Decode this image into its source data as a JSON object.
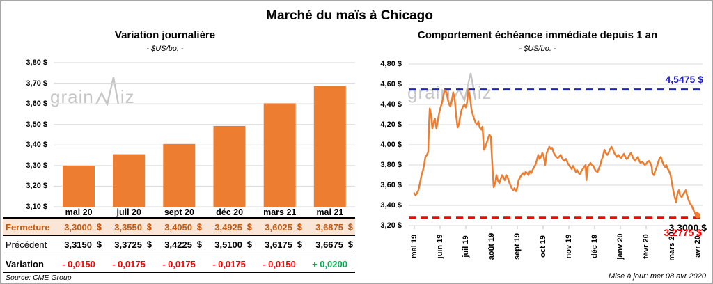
{
  "page": {
    "title": "Marché du maïs à Chicago",
    "source": "Source: CME Group",
    "updated": "Mise à jour: mer 08 avr 2020",
    "watermark": {
      "part1": "grain",
      "part2": "iz"
    }
  },
  "colors": {
    "orange": "#ED7D31",
    "blue_ref": "#2222C4",
    "red_ref": "#FF0000",
    "negative": "#FF0000",
    "positive": "#00B050",
    "fermeture_text": "#C55A11",
    "fermeture_bg": "#FBE5D6",
    "gridline": "#D9D9D9"
  },
  "chart_data": [
    {
      "type": "bar",
      "title": "Variation journalière",
      "subtitle": "- $US/bo. -",
      "categories": [
        "mai 20",
        "juil 20",
        "sept 20",
        "déc 20",
        "mars 21",
        "mai 21"
      ],
      "values": [
        3.3,
        3.355,
        3.405,
        3.4925,
        3.6025,
        3.6875
      ],
      "xlabel": "",
      "ylabel": "",
      "ylim": [
        3.1,
        3.8
      ],
      "ytick_step": 0.1,
      "ytick_labels": [
        "3,80 $",
        "3,70 $",
        "3,60 $",
        "3,50 $",
        "3,40 $",
        "3,30 $",
        "3,20 $",
        "3,10 $"
      ],
      "bar_color": "#ED7D31",
      "grid": true,
      "legend": "none"
    },
    {
      "type": "line",
      "title": "Comportement échéance immédiate depuis 1 an",
      "subtitle": "- $US/bo. -",
      "x_categories": [
        "mai 19",
        "juin 19",
        "juil 19",
        "août 19",
        "sept 19",
        "oct 19",
        "nov 19",
        "déc 19",
        "janv 20",
        "févr 20",
        "mars 20",
        "avr 20"
      ],
      "ylim": [
        3.2,
        4.8
      ],
      "ytick_step": 0.2,
      "ytick_labels": [
        "4,80 $",
        "4,60 $",
        "4,40 $",
        "4,20 $",
        "4,00 $",
        "3,80 $",
        "3,60 $",
        "3,40 $",
        "3,20 $"
      ],
      "line_color": "#ED7D31",
      "grid": true,
      "legend": "none",
      "ref_lines": [
        {
          "label": "4,5475 $",
          "value": 4.5475,
          "color": "#2222C4",
          "style": "dashed"
        },
        {
          "label": "3,2775 $",
          "value": 3.2775,
          "color": "#FF0000",
          "style": "dashed"
        }
      ],
      "last_point_label": "3,3000 $",
      "last_point_value": 3.3,
      "series": [
        {
          "name": "échéance immédiate",
          "points": [
            [
              0.0,
              3.52
            ],
            [
              0.05,
              3.5
            ],
            [
              0.1,
              3.52
            ],
            [
              0.16,
              3.55
            ],
            [
              0.22,
              3.62
            ],
            [
              0.28,
              3.7
            ],
            [
              0.33,
              3.74
            ],
            [
              0.38,
              3.8
            ],
            [
              0.43,
              3.88
            ],
            [
              0.49,
              3.9
            ],
            [
              0.54,
              3.93
            ],
            [
              0.57,
              4.2
            ],
            [
              0.6,
              4.36
            ],
            [
              0.65,
              4.3
            ],
            [
              0.7,
              4.16
            ],
            [
              0.75,
              4.22
            ],
            [
              0.8,
              4.26
            ],
            [
              0.86,
              4.16
            ],
            [
              0.92,
              4.25
            ],
            [
              0.97,
              4.32
            ],
            [
              1.03,
              4.38
            ],
            [
              1.08,
              4.42
            ],
            [
              1.14,
              4.5
            ],
            [
              1.19,
              4.54
            ],
            [
              1.25,
              4.52
            ],
            [
              1.3,
              4.45
            ],
            [
              1.35,
              4.4
            ],
            [
              1.4,
              4.38
            ],
            [
              1.46,
              4.44
            ],
            [
              1.51,
              4.52
            ],
            [
              1.57,
              4.45
            ],
            [
              1.62,
              4.3
            ],
            [
              1.68,
              4.17
            ],
            [
              1.73,
              4.2
            ],
            [
              1.78,
              4.28
            ],
            [
              1.84,
              4.35
            ],
            [
              1.89,
              4.38
            ],
            [
              1.95,
              4.4
            ],
            [
              2.0,
              4.37
            ],
            [
              2.05,
              4.42
            ],
            [
              2.1,
              4.55
            ],
            [
              2.16,
              4.48
            ],
            [
              2.22,
              4.35
            ],
            [
              2.27,
              4.3
            ],
            [
              2.32,
              4.26
            ],
            [
              2.38,
              4.22
            ],
            [
              2.43,
              4.2
            ],
            [
              2.49,
              4.23
            ],
            [
              2.54,
              4.17
            ],
            [
              2.6,
              4.15
            ],
            [
              2.65,
              4.18
            ],
            [
              2.7,
              3.95
            ],
            [
              2.76,
              3.98
            ],
            [
              2.81,
              4.02
            ],
            [
              2.86,
              4.06
            ],
            [
              2.92,
              4.1
            ],
            [
              2.97,
              4.08
            ],
            [
              3.03,
              3.8
            ],
            [
              3.08,
              3.58
            ],
            [
              3.14,
              3.62
            ],
            [
              3.19,
              3.7
            ],
            [
              3.24,
              3.65
            ],
            [
              3.3,
              3.62
            ],
            [
              3.35,
              3.66
            ],
            [
              3.41,
              3.7
            ],
            [
              3.46,
              3.68
            ],
            [
              3.51,
              3.65
            ],
            [
              3.57,
              3.7
            ],
            [
              3.62,
              3.68
            ],
            [
              3.68,
              3.63
            ],
            [
              3.73,
              3.6
            ],
            [
              3.78,
              3.57
            ],
            [
              3.84,
              3.55
            ],
            [
              3.89,
              3.57
            ],
            [
              3.95,
              3.54
            ],
            [
              4.0,
              3.58
            ],
            [
              4.05,
              3.65
            ],
            [
              4.11,
              3.68
            ],
            [
              4.16,
              3.7
            ],
            [
              4.22,
              3.72
            ],
            [
              4.27,
              3.7
            ],
            [
              4.32,
              3.73
            ],
            [
              4.38,
              3.72
            ],
            [
              4.43,
              3.7
            ],
            [
              4.49,
              3.74
            ],
            [
              4.54,
              3.72
            ],
            [
              4.59,
              3.75
            ],
            [
              4.65,
              3.78
            ],
            [
              4.7,
              3.8
            ],
            [
              4.76,
              3.85
            ],
            [
              4.81,
              3.9
            ],
            [
              4.86,
              3.86
            ],
            [
              4.92,
              3.88
            ],
            [
              4.97,
              3.92
            ],
            [
              5.03,
              3.88
            ],
            [
              5.08,
              3.8
            ],
            [
              5.14,
              3.92
            ],
            [
              5.19,
              3.95
            ],
            [
              5.24,
              3.98
            ],
            [
              5.3,
              3.96
            ],
            [
              5.35,
              3.97
            ],
            [
              5.41,
              3.92
            ],
            [
              5.46,
              3.9
            ],
            [
              5.51,
              3.88
            ],
            [
              5.57,
              3.87
            ],
            [
              5.62,
              3.88
            ],
            [
              5.68,
              3.9
            ],
            [
              5.73,
              3.87
            ],
            [
              5.78,
              3.85
            ],
            [
              5.84,
              3.84
            ],
            [
              5.89,
              3.86
            ],
            [
              5.95,
              3.82
            ],
            [
              6.0,
              3.8
            ],
            [
              6.05,
              3.78
            ],
            [
              6.11,
              3.76
            ],
            [
              6.16,
              3.79
            ],
            [
              6.22,
              3.76
            ],
            [
              6.27,
              3.73
            ],
            [
              6.32,
              3.75
            ],
            [
              6.38,
              3.72
            ],
            [
              6.43,
              3.71
            ],
            [
              6.49,
              3.74
            ],
            [
              6.54,
              3.76
            ],
            [
              6.59,
              3.78
            ],
            [
              6.65,
              3.8
            ],
            [
              6.68,
              3.65
            ],
            [
              6.73,
              3.78
            ],
            [
              6.78,
              3.8
            ],
            [
              6.84,
              3.82
            ],
            [
              6.89,
              3.8
            ],
            [
              6.95,
              3.79
            ],
            [
              7.0,
              3.76
            ],
            [
              7.05,
              3.74
            ],
            [
              7.11,
              3.73
            ],
            [
              7.16,
              3.76
            ],
            [
              7.22,
              3.8
            ],
            [
              7.27,
              3.85
            ],
            [
              7.32,
              3.88
            ],
            [
              7.38,
              3.95
            ],
            [
              7.43,
              3.92
            ],
            [
              7.49,
              3.9
            ],
            [
              7.54,
              3.92
            ],
            [
              7.59,
              3.95
            ],
            [
              7.65,
              3.98
            ],
            [
              7.7,
              3.96
            ],
            [
              7.76,
              3.92
            ],
            [
              7.81,
              3.9
            ],
            [
              7.86,
              3.88
            ],
            [
              7.92,
              3.9
            ],
            [
              7.97,
              3.88
            ],
            [
              8.03,
              3.87
            ],
            [
              8.08,
              3.89
            ],
            [
              8.14,
              3.91
            ],
            [
              8.19,
              3.88
            ],
            [
              8.24,
              3.86
            ],
            [
              8.3,
              3.87
            ],
            [
              8.35,
              3.9
            ],
            [
              8.41,
              3.92
            ],
            [
              8.46,
              3.89
            ],
            [
              8.51,
              3.86
            ],
            [
              8.57,
              3.84
            ],
            [
              8.62,
              3.86
            ],
            [
              8.68,
              3.88
            ],
            [
              8.73,
              3.84
            ],
            [
              8.78,
              3.82
            ],
            [
              8.84,
              3.83
            ],
            [
              8.89,
              3.82
            ],
            [
              8.95,
              3.8
            ],
            [
              9.0,
              3.81
            ],
            [
              9.05,
              3.83
            ],
            [
              9.11,
              3.84
            ],
            [
              9.16,
              3.82
            ],
            [
              9.22,
              3.78
            ],
            [
              9.24,
              3.72
            ],
            [
              9.3,
              3.7
            ],
            [
              9.35,
              3.74
            ],
            [
              9.41,
              3.78
            ],
            [
              9.46,
              3.82
            ],
            [
              9.51,
              3.86
            ],
            [
              9.57,
              3.88
            ],
            [
              9.62,
              3.84
            ],
            [
              9.68,
              3.8
            ],
            [
              9.73,
              3.78
            ],
            [
              9.78,
              3.8
            ],
            [
              9.84,
              3.76
            ],
            [
              9.89,
              3.74
            ],
            [
              9.95,
              3.7
            ],
            [
              10.0,
              3.62
            ],
            [
              10.05,
              3.55
            ],
            [
              10.11,
              3.48
            ],
            [
              10.16,
              3.43
            ],
            [
              10.22,
              3.52
            ],
            [
              10.27,
              3.55
            ],
            [
              10.32,
              3.5
            ],
            [
              10.38,
              3.48
            ],
            [
              10.43,
              3.51
            ],
            [
              10.49,
              3.53
            ],
            [
              10.54,
              3.55
            ],
            [
              10.59,
              3.5
            ],
            [
              10.65,
              3.45
            ],
            [
              10.7,
              3.42
            ],
            [
              10.76,
              3.4
            ],
            [
              10.81,
              3.37
            ],
            [
              10.86,
              3.34
            ],
            [
              10.92,
              3.31
            ],
            [
              10.97,
              3.33
            ],
            [
              11.0,
              3.3
            ]
          ]
        }
      ]
    }
  ],
  "table": {
    "currency": "$",
    "rows": [
      {
        "label": "Fermeture",
        "values": [
          "3,3000",
          "3,3550",
          "3,4050",
          "3,4925",
          "3,6025",
          "3,6875"
        ]
      },
      {
        "label": "Précédent",
        "values": [
          "3,3150",
          "3,3725",
          "3,4225",
          "3,5100",
          "3,6175",
          "3,6675"
        ]
      },
      {
        "label": "Variation",
        "values": [
          "- 0,0150",
          "- 0,0175",
          "- 0,0175",
          "- 0,0175",
          "- 0,0150",
          "+ 0,0200"
        ]
      }
    ]
  }
}
